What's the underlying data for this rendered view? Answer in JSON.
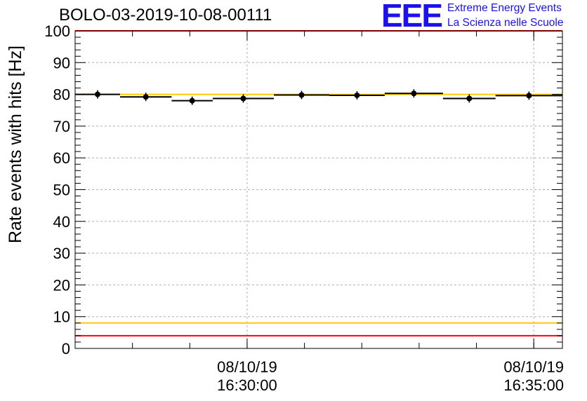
{
  "header": {
    "title": "BOLO-03-2019-10-08-00111"
  },
  "logo": {
    "mark": "EEE",
    "line1": "Extreme Energy Events",
    "line2": "La Scienza nelle Scuole",
    "color": "#1d10ee"
  },
  "colors": {
    "limit_red": "#ff0000",
    "limit_yellow": "#ffcc00",
    "marker": "#000000",
    "grid": "#b0b0b0"
  },
  "chart_data": {
    "type": "scatter",
    "title": "BOLO-03-2019-10-08-00111",
    "ylabel": "Rate events with hits [Hz]",
    "xlabel": "",
    "ylim": [
      0,
      100
    ],
    "yticks": [
      0,
      10,
      20,
      30,
      40,
      50,
      60,
      70,
      80,
      90,
      100
    ],
    "xlim": [
      "08/10/19 16:27:00",
      "08/10/19 16:35:30"
    ],
    "xticks": [
      {
        "time": "08/10/19 16:30:00",
        "date_label": "08/10/19",
        "time_label": "16:30:00"
      },
      {
        "time": "08/10/19 16:35:00",
        "date_label": "08/10/19",
        "time_label": "16:35:00"
      }
    ],
    "grid": true,
    "series": [
      {
        "points": [
          {
            "x_start": "08/10/19 16:27:00",
            "x_end": "08/10/19 16:27:47",
            "y": 80.0
          },
          {
            "x_start": "08/10/19 16:27:47",
            "x_end": "08/10/19 16:28:41",
            "y": 79.2
          },
          {
            "x_start": "08/10/19 16:28:41",
            "x_end": "08/10/19 16:29:24",
            "y": 78.0
          },
          {
            "x_start": "08/10/19 16:29:24",
            "x_end": "08/10/19 16:30:28",
            "y": 78.7
          },
          {
            "x_start": "08/10/19 16:30:28",
            "x_end": "08/10/19 16:31:26",
            "y": 79.8
          },
          {
            "x_start": "08/10/19 16:31:26",
            "x_end": "08/10/19 16:32:24",
            "y": 79.7
          },
          {
            "x_start": "08/10/19 16:32:24",
            "x_end": "08/10/19 16:33:25",
            "y": 80.3
          },
          {
            "x_start": "08/10/19 16:33:25",
            "x_end": "08/10/19 16:34:20",
            "y": 78.7
          },
          {
            "x_start": "08/10/19 16:34:20",
            "x_end": "08/10/19 16:35:30",
            "y": 79.6
          }
        ]
      }
    ],
    "reference_lines": [
      {
        "y": 100,
        "color": "red"
      },
      {
        "y": 80,
        "color": "yellow"
      },
      {
        "y": 8,
        "color": "yellow"
      },
      {
        "y": 4,
        "color": "red"
      }
    ]
  }
}
